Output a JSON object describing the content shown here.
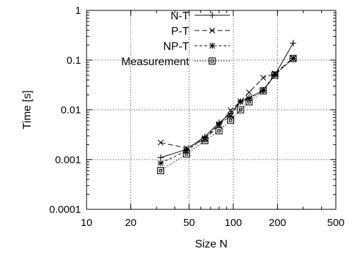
{
  "chart_data": {
    "type": "line",
    "title": "",
    "xlabel": "Size N",
    "ylabel": "Time [s]",
    "x_scale": "log",
    "y_scale": "log",
    "xlim": [
      10,
      500
    ],
    "ylim": [
      0.0001,
      1
    ],
    "x_ticks": [
      10,
      20,
      50,
      100,
      200,
      500
    ],
    "x_tick_labels": [
      "10",
      "20",
      "50",
      "100",
      "200",
      "500"
    ],
    "y_ticks": [
      0.0001,
      0.001,
      0.01,
      0.1,
      1
    ],
    "y_tick_labels": [
      "0.0001",
      "0.001",
      "0.01",
      "0.1",
      "1"
    ],
    "grid": true,
    "legend_position": "top-left",
    "series": [
      {
        "name": "N-T",
        "marker": "plus",
        "line_style": "solid",
        "x": [
          32,
          48,
          64,
          80,
          96,
          112,
          128,
          160,
          192,
          256
        ],
        "y": [
          0.0011,
          0.0016,
          0.0029,
          0.0055,
          0.0085,
          0.0148,
          0.0175,
          0.0245,
          0.05,
          0.22
        ]
      },
      {
        "name": "P-T",
        "marker": "cross",
        "line_style": "dashed",
        "x": [
          32,
          48,
          64,
          80,
          96,
          112,
          128,
          160,
          192,
          256
        ],
        "y": [
          0.0022,
          0.0017,
          0.0026,
          0.0048,
          0.0098,
          0.0148,
          0.0225,
          0.044,
          0.054,
          0.11
        ]
      },
      {
        "name": "NP-T",
        "marker": "star",
        "line_style": "short-dashed",
        "x": [
          32,
          48,
          64,
          80,
          96,
          112,
          128,
          160,
          192,
          256
        ],
        "y": [
          0.00085,
          0.0015,
          0.0027,
          0.0052,
          0.0075,
          0.0145,
          0.017,
          0.025,
          0.052,
          0.108
        ]
      },
      {
        "name": "Measurement",
        "marker": "box",
        "line_style": "dotted",
        "x": [
          32,
          48,
          64,
          80,
          96,
          112,
          128,
          160,
          192,
          256
        ],
        "y": [
          0.0006,
          0.0013,
          0.0024,
          0.0038,
          0.0062,
          0.01,
          0.0145,
          0.024,
          0.05,
          0.108
        ]
      }
    ]
  }
}
